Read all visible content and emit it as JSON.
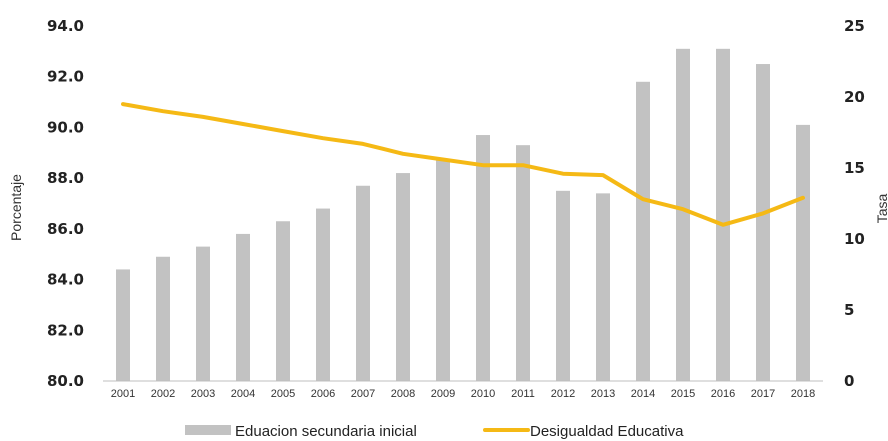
{
  "chart_data": {
    "type": "bar",
    "categories": [
      "2001",
      "2002",
      "2003",
      "2004",
      "2005",
      "2006",
      "2007",
      "2008",
      "2009",
      "2010",
      "2011",
      "2012",
      "2013",
      "2014",
      "2015",
      "2016",
      "2017",
      "2018"
    ],
    "series": [
      {
        "name": "Eduacion secundaria inicial",
        "type": "bar",
        "axis": "left",
        "color": "#c2c2c2",
        "values": [
          84.4,
          84.9,
          85.3,
          85.8,
          86.3,
          86.8,
          87.7,
          88.2,
          88.7,
          89.7,
          89.3,
          87.5,
          87.4,
          91.8,
          93.1,
          93.1,
          92.5,
          90.1
        ]
      },
      {
        "name": "Desigualdad Educativa",
        "type": "line",
        "axis": "right",
        "color": "#f5b915",
        "values": [
          19.5,
          19.0,
          18.6,
          18.1,
          17.6,
          17.1,
          16.7,
          16.0,
          15.6,
          15.2,
          15.2,
          14.6,
          14.5,
          12.8,
          12.1,
          11.0,
          11.8,
          12.9
        ]
      }
    ],
    "y_left": {
      "label": "Porcentaje",
      "range": [
        80,
        94
      ],
      "ticks": [
        "80.0",
        "82.0",
        "84.0",
        "86.0",
        "88.0",
        "90.0",
        "92.0",
        "94.0"
      ]
    },
    "y_right": {
      "label": "Tasa",
      "range": [
        0,
        25
      ],
      "ticks": [
        "0",
        "5",
        "10",
        "15",
        "20",
        "25"
      ]
    },
    "legend": {
      "position": "bottom-center"
    },
    "grid": false
  }
}
